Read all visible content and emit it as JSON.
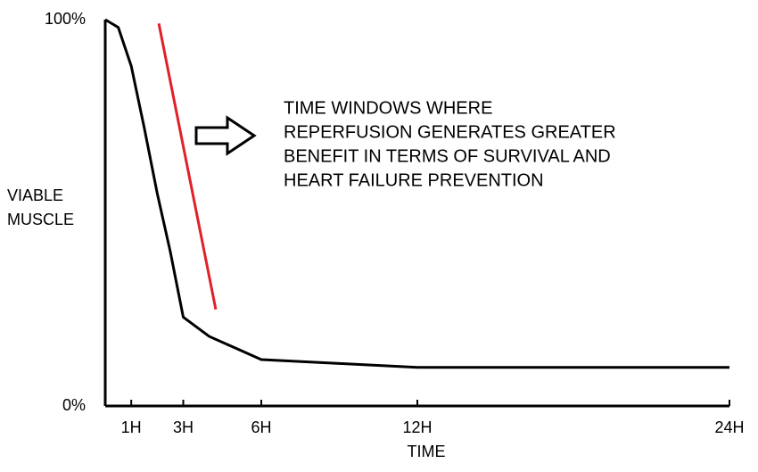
{
  "chart_data": {
    "type": "line",
    "y_label": [
      "VIABLE",
      "MUSCLE"
    ],
    "x_label": "TIME",
    "annotation": [
      "TIME WINDOWS WHERE",
      "REPERFUSION GENERATES GREATER",
      "BENEFIT IN TERMS OF SURVIVAL AND",
      "HEART FAILURE PREVENTION"
    ],
    "xlim": [
      0,
      24
    ],
    "ylim": [
      0,
      100
    ],
    "xticks": [
      {
        "value": 1,
        "label": "1H"
      },
      {
        "value": 3,
        "label": "3H"
      },
      {
        "value": 6,
        "label": "6H"
      },
      {
        "value": 12,
        "label": "12H"
      },
      {
        "value": 24,
        "label": "24H"
      }
    ],
    "yticks": [
      {
        "value": 0,
        "label": "0%"
      },
      {
        "value": 100,
        "label": "100%"
      }
    ],
    "series": [
      {
        "color": "#000000",
        "x": [
          0,
          0.5,
          1,
          1.5,
          2,
          2.5,
          3,
          4,
          5,
          6,
          9,
          12,
          24
        ],
        "values": [
          100,
          98,
          88,
          72,
          55,
          40,
          23,
          18,
          15,
          12,
          11,
          10,
          10
        ]
      },
      {
        "color": "#e0202a",
        "x": [
          2.06,
          4.25
        ],
        "values": [
          99,
          25
        ]
      }
    ]
  }
}
